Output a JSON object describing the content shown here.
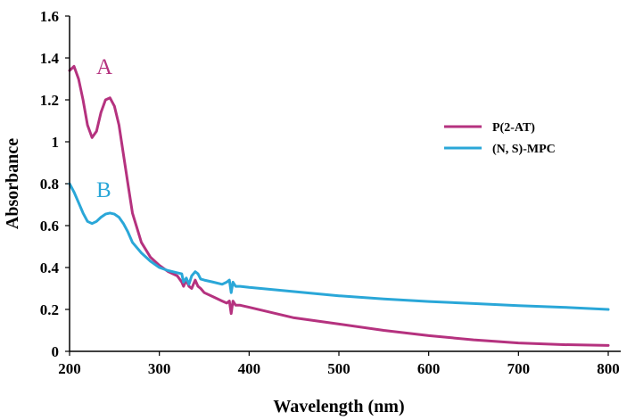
{
  "chart_data": {
    "type": "line",
    "title": "",
    "xlabel": "Wavelength (nm)",
    "ylabel": "Absorbance",
    "xlim": [
      200,
      800
    ],
    "ylim": [
      0,
      1.6
    ],
    "xticks": [
      200,
      300,
      400,
      500,
      600,
      700,
      800
    ],
    "yticks": [
      0,
      0.2,
      0.4,
      0.6,
      0.8,
      1,
      1.2,
      1.4,
      1.6
    ],
    "ytick_labels": [
      "0",
      "0.2",
      "0.4",
      "0.6",
      "0.8",
      "1",
      "1.2",
      "1.4",
      "1.6"
    ],
    "grid": false,
    "legend_position": "right",
    "series": [
      {
        "name": "P(2-AT)",
        "color": "#b5327f",
        "annotation": "A",
        "x": [
          200,
          205,
          210,
          215,
          220,
          225,
          230,
          235,
          240,
          245,
          250,
          255,
          260,
          265,
          270,
          280,
          290,
          300,
          310,
          320,
          325,
          327,
          330,
          333,
          336,
          340,
          343,
          346,
          350,
          360,
          370,
          375,
          378,
          380,
          382,
          385,
          390,
          400,
          450,
          500,
          550,
          600,
          650,
          700,
          750,
          800
        ],
        "y": [
          1.34,
          1.36,
          1.3,
          1.2,
          1.08,
          1.02,
          1.05,
          1.14,
          1.2,
          1.21,
          1.17,
          1.08,
          0.94,
          0.8,
          0.66,
          0.52,
          0.45,
          0.41,
          0.38,
          0.36,
          0.33,
          0.31,
          0.34,
          0.31,
          0.3,
          0.34,
          0.31,
          0.3,
          0.28,
          0.26,
          0.24,
          0.23,
          0.24,
          0.18,
          0.24,
          0.22,
          0.22,
          0.21,
          0.16,
          0.13,
          0.1,
          0.075,
          0.055,
          0.04,
          0.032,
          0.028
        ]
      },
      {
        "name": "(N, S)-MPC",
        "color": "#2aa7d8",
        "annotation": "B",
        "x": [
          200,
          205,
          210,
          215,
          220,
          225,
          230,
          235,
          240,
          245,
          250,
          255,
          260,
          265,
          270,
          280,
          290,
          300,
          310,
          320,
          325,
          327,
          330,
          333,
          336,
          340,
          343,
          346,
          350,
          360,
          370,
          375,
          378,
          380,
          382,
          385,
          390,
          400,
          450,
          500,
          550,
          600,
          650,
          700,
          750,
          800
        ],
        "y": [
          0.8,
          0.76,
          0.71,
          0.66,
          0.62,
          0.61,
          0.62,
          0.64,
          0.655,
          0.66,
          0.655,
          0.64,
          0.61,
          0.57,
          0.52,
          0.47,
          0.43,
          0.4,
          0.385,
          0.375,
          0.37,
          0.33,
          0.35,
          0.32,
          0.36,
          0.38,
          0.37,
          0.345,
          0.34,
          0.33,
          0.32,
          0.33,
          0.34,
          0.28,
          0.33,
          0.31,
          0.31,
          0.305,
          0.285,
          0.265,
          0.25,
          0.238,
          0.228,
          0.218,
          0.21,
          0.2
        ]
      }
    ]
  }
}
